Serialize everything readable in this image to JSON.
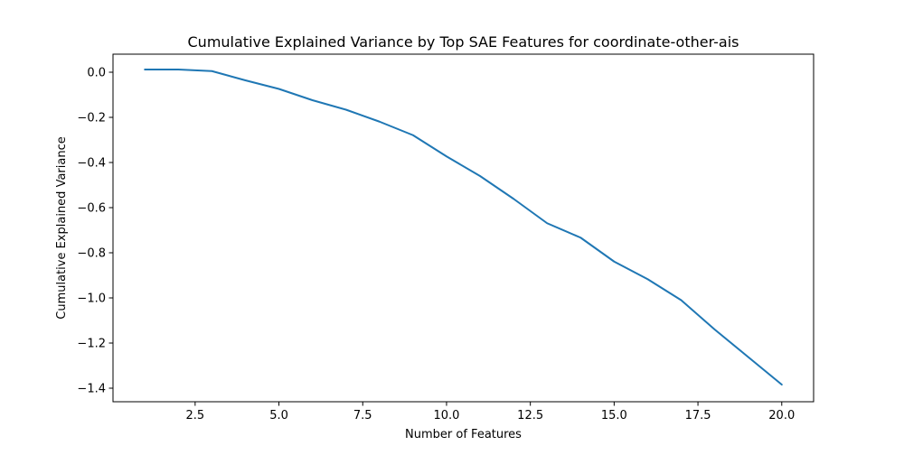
{
  "chart_data": {
    "type": "line",
    "title": "Cumulative Explained Variance by Top SAE Features for coordinate-other-ais",
    "xlabel": "Number of Features",
    "ylabel": "Cumulative Explained Variance",
    "xlim": [
      0.05,
      20.95
    ],
    "ylim": [
      -1.46,
      0.08
    ],
    "xticks": [
      2.5,
      5.0,
      7.5,
      10.0,
      12.5,
      15.0,
      17.5,
      20.0
    ],
    "xtick_labels": [
      "2.5",
      "5.0",
      "7.5",
      "10.0",
      "12.5",
      "15.0",
      "17.5",
      "20.0"
    ],
    "yticks": [
      0.0,
      -0.2,
      -0.4,
      -0.6,
      -0.8,
      -1.0,
      -1.2,
      -1.4
    ],
    "ytick_labels": [
      "0.0",
      "−0.2",
      "−0.4",
      "−0.6",
      "−0.8",
      "−1.0",
      "−1.2",
      "−1.4"
    ],
    "grid": false,
    "series": [
      {
        "color": "#1f77b4",
        "x": [
          1,
          2,
          3,
          4,
          5,
          6,
          7,
          8,
          9,
          10,
          11,
          12,
          13,
          14,
          15,
          16,
          17,
          18,
          19,
          20
        ],
        "y": [
          0.012,
          0.012,
          0.005,
          -0.036,
          -0.074,
          -0.124,
          -0.166,
          -0.219,
          -0.279,
          -0.373,
          -0.46,
          -0.561,
          -0.669,
          -0.733,
          -0.839,
          -0.917,
          -1.01,
          -1.14,
          -1.262,
          -1.384
        ]
      }
    ]
  }
}
